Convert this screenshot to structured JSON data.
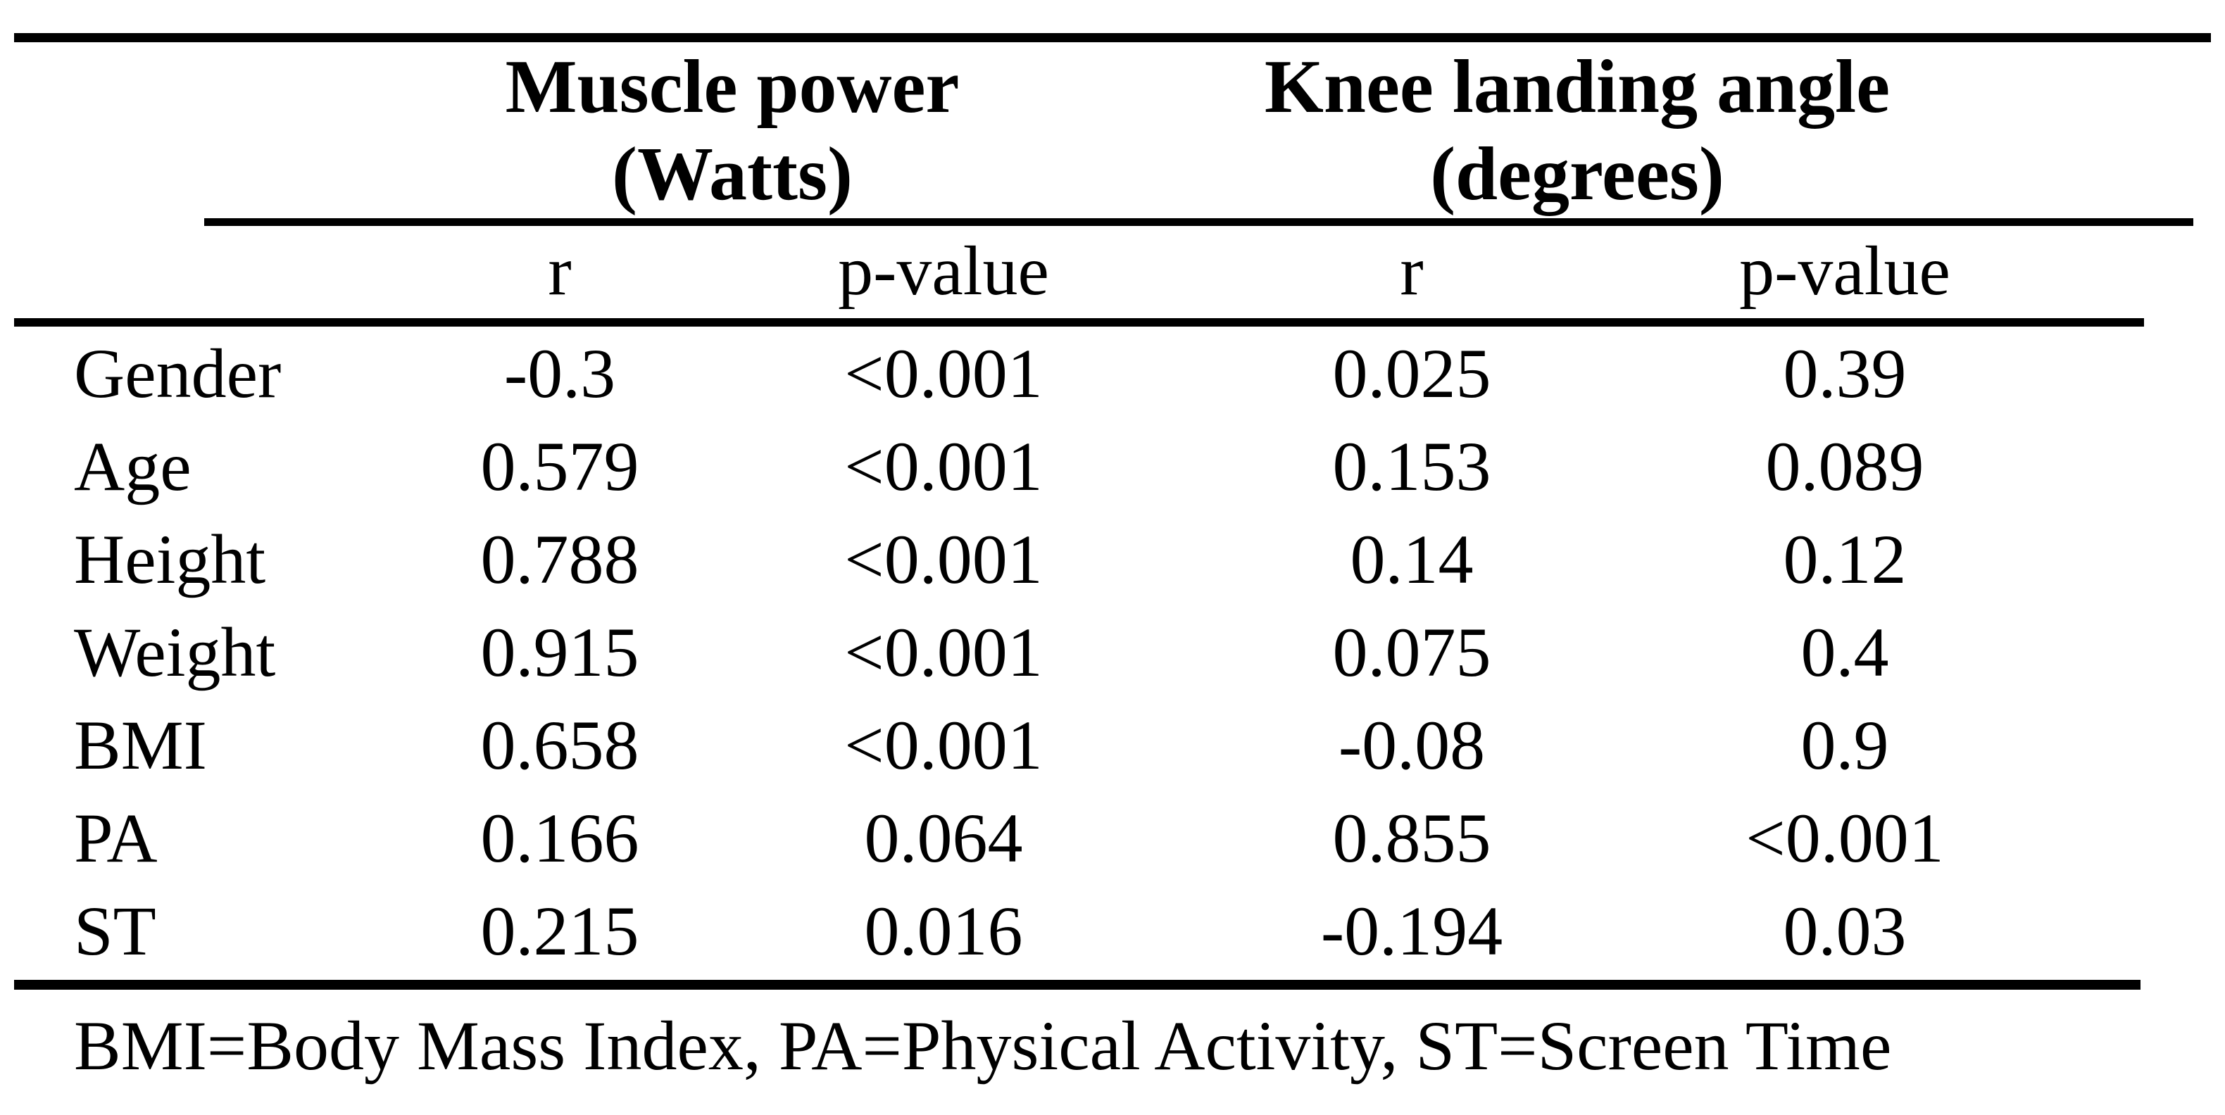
{
  "table": {
    "col_groups": [
      {
        "label": "Muscle power",
        "unit": "(Watts)"
      },
      {
        "label": "Knee landing angle",
        "unit": "(degrees)"
      }
    ],
    "sub_headers": [
      "r",
      "p-value",
      "r",
      "p-value"
    ],
    "rows": [
      {
        "label": "Gender",
        "values": [
          "-0.3",
          "<0.001",
          "0.025",
          "0.39"
        ]
      },
      {
        "label": "Age",
        "values": [
          "0.579",
          "<0.001",
          "0.153",
          "0.089"
        ]
      },
      {
        "label": "Height",
        "values": [
          "0.788",
          "<0.001",
          "0.14",
          "0.12"
        ]
      },
      {
        "label": "Weight",
        "values": [
          "0.915",
          "<0.001",
          "0.075",
          "0.4"
        ]
      },
      {
        "label": "BMI",
        "values": [
          "0.658",
          "<0.001",
          "-0.08",
          "0.9"
        ]
      },
      {
        "label": "PA",
        "values": [
          "0.166",
          "0.064",
          "0.855",
          "<0.001"
        ]
      },
      {
        "label": "ST",
        "values": [
          "0.215",
          "0.016",
          "-0.194",
          "0.03"
        ]
      }
    ],
    "footnote": "BMI=Body Mass Index, PA=Physical Activity, ST=Screen Time"
  },
  "colors": {
    "background": "#ffffff",
    "text": "#000000",
    "rule": "#000000"
  }
}
